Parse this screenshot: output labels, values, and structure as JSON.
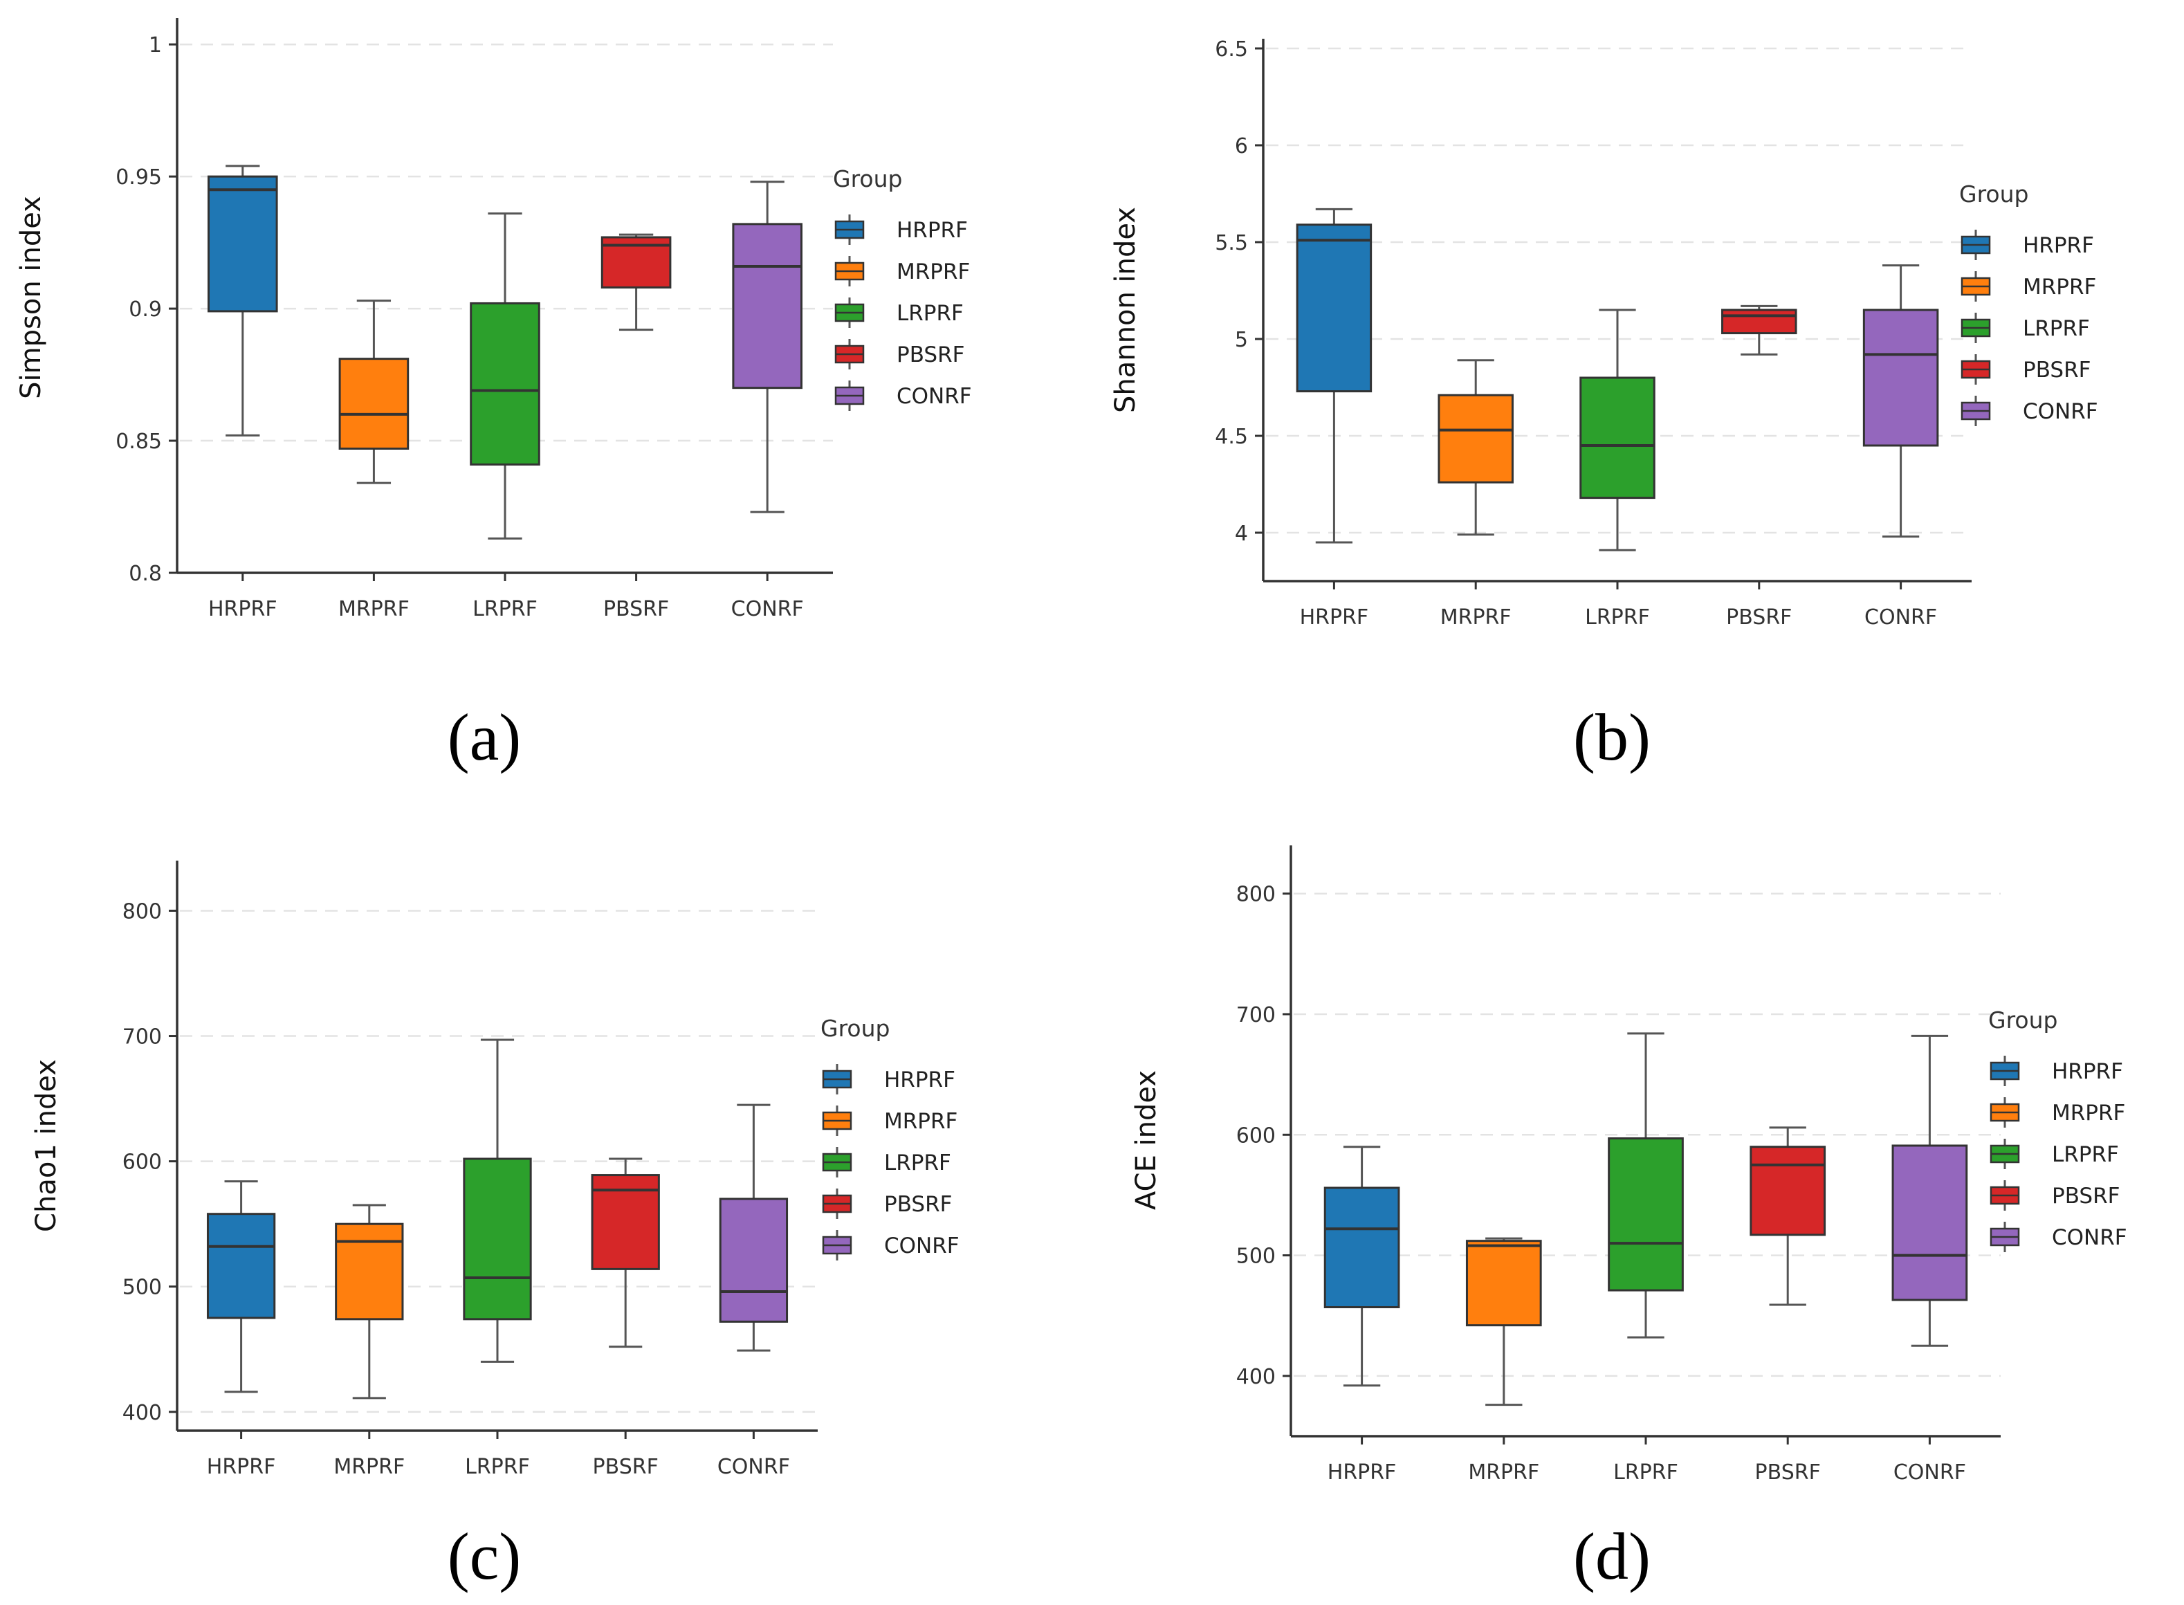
{
  "chart_data": [
    {
      "type": "box",
      "panel": "(a)",
      "ylabel": "Simpson index",
      "xlabel": "",
      "ylim": [
        0.8,
        1.01
      ],
      "yticks": [
        "0.8",
        "0.85",
        "0.9",
        "0.95",
        "1"
      ],
      "categories": [
        "HRPRF",
        "MRPRF",
        "LRPRF",
        "PBSRF",
        "CONRF"
      ],
      "series": [
        {
          "name": "HRPRF",
          "min": 0.852,
          "q1": 0.899,
          "median": 0.945,
          "q3": 0.95,
          "max": 0.954
        },
        {
          "name": "MRPRF",
          "min": 0.834,
          "q1": 0.847,
          "median": 0.86,
          "q3": 0.881,
          "max": 0.903
        },
        {
          "name": "LRPRF",
          "min": 0.813,
          "q1": 0.841,
          "median": 0.869,
          "q3": 0.902,
          "max": 0.936
        },
        {
          "name": "PBSRF",
          "min": 0.892,
          "q1": 0.908,
          "median": 0.924,
          "q3": 0.927,
          "max": 0.928
        },
        {
          "name": "CONRF",
          "min": 0.823,
          "q1": 0.87,
          "median": 0.916,
          "q3": 0.932,
          "max": 0.948
        }
      ],
      "grid": true,
      "legend": {
        "title": "Group",
        "position": "right"
      }
    },
    {
      "type": "box",
      "panel": "(b)",
      "ylabel": "Shannon index",
      "xlabel": "",
      "ylim": [
        3.75,
        6.55
      ],
      "yticks": [
        "4",
        "4.5",
        "5",
        "5.5",
        "6",
        "6.5"
      ],
      "categories": [
        "HRPRF",
        "MRPRF",
        "LRPRF",
        "PBSRF",
        "CONRF"
      ],
      "series": [
        {
          "name": "HRPRF",
          "min": 3.95,
          "q1": 4.73,
          "median": 5.51,
          "q3": 5.59,
          "max": 5.67
        },
        {
          "name": "MRPRF",
          "min": 3.99,
          "q1": 4.26,
          "median": 4.53,
          "q3": 4.71,
          "max": 4.89
        },
        {
          "name": "LRPRF",
          "min": 3.91,
          "q1": 4.18,
          "median": 4.45,
          "q3": 4.8,
          "max": 5.15
        },
        {
          "name": "PBSRF",
          "min": 4.92,
          "q1": 5.03,
          "median": 5.12,
          "q3": 5.15,
          "max": 5.17
        },
        {
          "name": "CONRF",
          "min": 3.98,
          "q1": 4.45,
          "median": 4.92,
          "q3": 5.15,
          "max": 5.38
        }
      ],
      "grid": true,
      "legend": {
        "title": "Group",
        "position": "right"
      }
    },
    {
      "type": "box",
      "panel": "(c)",
      "ylabel": "Chao1 index",
      "xlabel": "",
      "ylim": [
        385,
        840
      ],
      "yticks": [
        "400",
        "500",
        "600",
        "700",
        "800"
      ],
      "categories": [
        "HRPRF",
        "MRPRF",
        "LRPRF",
        "PBSRF",
        "CONRF"
      ],
      "series": [
        {
          "name": "HRPRF",
          "min": 416,
          "q1": 475,
          "median": 532,
          "q3": 558,
          "max": 584
        },
        {
          "name": "MRPRF",
          "min": 411,
          "q1": 474,
          "median": 536,
          "q3": 550,
          "max": 565
        },
        {
          "name": "LRPRF",
          "min": 440,
          "q1": 474,
          "median": 507,
          "q3": 602,
          "max": 697
        },
        {
          "name": "PBSRF",
          "min": 452,
          "q1": 514,
          "median": 577,
          "q3": 589,
          "max": 602
        },
        {
          "name": "CONRF",
          "min": 449,
          "q1": 472,
          "median": 496,
          "q3": 570,
          "max": 645
        }
      ],
      "grid": true,
      "legend": {
        "title": "Group",
        "position": "right"
      }
    },
    {
      "type": "box",
      "panel": "(d)",
      "ylabel": "ACE index",
      "xlabel": "",
      "ylim": [
        350,
        840
      ],
      "yticks": [
        "400",
        "500",
        "600",
        "700",
        "800"
      ],
      "categories": [
        "HRPRF",
        "MRPRF",
        "LRPRF",
        "PBSRF",
        "CONRF"
      ],
      "series": [
        {
          "name": "HRPRF",
          "min": 392,
          "q1": 457,
          "median": 522,
          "q3": 556,
          "max": 590
        },
        {
          "name": "MRPRF",
          "min": 376,
          "q1": 442,
          "median": 508,
          "q3": 512,
          "max": 514
        },
        {
          "name": "LRPRF",
          "min": 432,
          "q1": 471,
          "median": 510,
          "q3": 597,
          "max": 684
        },
        {
          "name": "PBSRF",
          "min": 459,
          "q1": 517,
          "median": 575,
          "q3": 590,
          "max": 606
        },
        {
          "name": "CONRF",
          "min": 425,
          "q1": 463,
          "median": 500,
          "q3": 591,
          "max": 682
        }
      ],
      "grid": true,
      "legend": {
        "title": "Group",
        "position": "right"
      }
    }
  ],
  "colors": {
    "HRPRF": "#1f77b4",
    "MRPRF": "#ff7f0e",
    "LRPRF": "#2ca02c",
    "PBSRF": "#d62728",
    "CONRF": "#9467bd",
    "axis": "#333333",
    "grid": "#e3e3e3"
  }
}
